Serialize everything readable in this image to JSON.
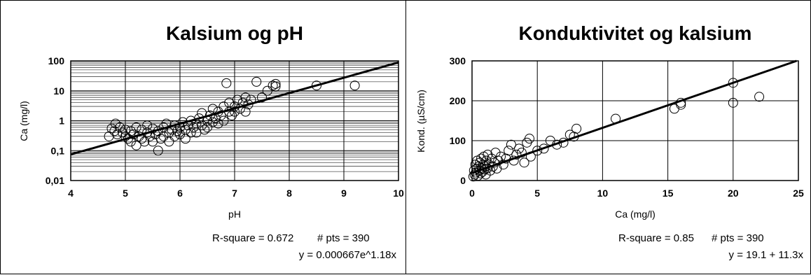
{
  "chart_data": [
    {
      "type": "scatter",
      "title": "Kalsium og pH",
      "xlabel": "pH",
      "ylabel": "Ca (mg/l)",
      "xlim": [
        4,
        10
      ],
      "ylim": [
        0.01,
        100
      ],
      "y_scale": "log",
      "grid": true,
      "x_ticks": [
        "4",
        "5",
        "6",
        "7",
        "8",
        "9",
        "10"
      ],
      "y_ticks": [
        "0,01",
        "0,1",
        "1",
        "10",
        "100"
      ],
      "trendline": {
        "type": "exponential",
        "a": 0.000667,
        "b": 1.18
      },
      "stats": {
        "r_square": "R-square = 0.672",
        "pts": "# pts = 390",
        "equation": "y = 0.000667e^1.18x"
      },
      "points": [
        [
          4.7,
          0.3
        ],
        [
          4.75,
          0.55
        ],
        [
          4.8,
          0.45
        ],
        [
          4.82,
          0.8
        ],
        [
          4.85,
          0.35
        ],
        [
          4.9,
          0.6
        ],
        [
          4.95,
          0.4
        ],
        [
          5.0,
          0.5
        ],
        [
          5.0,
          0.3
        ],
        [
          5.05,
          0.25
        ],
        [
          5.1,
          0.45
        ],
        [
          5.1,
          0.2
        ],
        [
          5.15,
          0.35
        ],
        [
          5.2,
          0.6
        ],
        [
          5.2,
          0.15
        ],
        [
          5.25,
          0.3
        ],
        [
          5.3,
          0.5
        ],
        [
          5.3,
          0.25
        ],
        [
          5.35,
          0.2
        ],
        [
          5.4,
          0.4
        ],
        [
          5.4,
          0.7
        ],
        [
          5.45,
          0.3
        ],
        [
          5.5,
          0.2
        ],
        [
          5.5,
          0.55
        ],
        [
          5.55,
          0.35
        ],
        [
          5.6,
          0.1
        ],
        [
          5.6,
          0.45
        ],
        [
          5.65,
          0.25
        ],
        [
          5.7,
          0.6
        ],
        [
          5.7,
          0.3
        ],
        [
          5.75,
          0.8
        ],
        [
          5.8,
          0.4
        ],
        [
          5.8,
          0.2
        ],
        [
          5.85,
          0.5
        ],
        [
          5.9,
          0.3
        ],
        [
          5.9,
          0.7
        ],
        [
          5.95,
          0.45
        ],
        [
          6.0,
          0.6
        ],
        [
          6.0,
          0.35
        ],
        [
          6.05,
          0.9
        ],
        [
          6.1,
          0.5
        ],
        [
          6.1,
          0.25
        ],
        [
          6.15,
          0.7
        ],
        [
          6.2,
          0.4
        ],
        [
          6.2,
          1.0
        ],
        [
          6.25,
          0.6
        ],
        [
          6.3,
          0.8
        ],
        [
          6.3,
          0.4
        ],
        [
          6.35,
          1.2
        ],
        [
          6.4,
          0.7
        ],
        [
          6.4,
          1.8
        ],
        [
          6.45,
          0.5
        ],
        [
          6.5,
          1.0
        ],
        [
          6.5,
          0.6
        ],
        [
          6.55,
          1.5
        ],
        [
          6.6,
          0.9
        ],
        [
          6.6,
          2.5
        ],
        [
          6.65,
          1.2
        ],
        [
          6.7,
          0.8
        ],
        [
          6.7,
          2.0
        ],
        [
          6.75,
          1.5
        ],
        [
          6.8,
          3.0
        ],
        [
          6.8,
          1.0
        ],
        [
          6.85,
          18
        ],
        [
          6.9,
          2.0
        ],
        [
          6.9,
          4.0
        ],
        [
          6.95,
          1.5
        ],
        [
          7.0,
          3.0
        ],
        [
          7.0,
          2.0
        ],
        [
          7.05,
          5.0
        ],
        [
          7.1,
          2.5
        ],
        [
          7.15,
          4.0
        ],
        [
          7.2,
          6.0
        ],
        [
          7.2,
          2.0
        ],
        [
          7.25,
          3.5
        ],
        [
          7.3,
          5.0
        ],
        [
          7.4,
          20
        ],
        [
          7.5,
          6.0
        ],
        [
          7.6,
          10
        ],
        [
          7.7,
          15
        ],
        [
          7.75,
          17
        ],
        [
          7.75,
          14
        ],
        [
          8.5,
          15
        ],
        [
          9.2,
          15
        ]
      ]
    },
    {
      "type": "scatter",
      "title": "Konduktivitet og kalsium",
      "xlabel": "Ca (mg/l)",
      "ylabel": "Kond. (µS/cm)",
      "xlim": [
        0,
        25
      ],
      "ylim": [
        0,
        300
      ],
      "grid": true,
      "x_ticks": [
        "0",
        "5",
        "10",
        "15",
        "20",
        "25"
      ],
      "y_ticks": [
        "0",
        "100",
        "200",
        "300"
      ],
      "trendline": {
        "type": "linear",
        "intercept": 19.1,
        "slope": 11.3
      },
      "stats": {
        "r_square": "R-square = 0.85",
        "pts": "# pts = 390",
        "equation": "y = 19.1 + 11.3x"
      },
      "points": [
        [
          0.1,
          10
        ],
        [
          0.15,
          25
        ],
        [
          0.2,
          15
        ],
        [
          0.25,
          40
        ],
        [
          0.3,
          20
        ],
        [
          0.35,
          30
        ],
        [
          0.4,
          50
        ],
        [
          0.45,
          12
        ],
        [
          0.5,
          35
        ],
        [
          0.55,
          25
        ],
        [
          0.6,
          45
        ],
        [
          0.65,
          18
        ],
        [
          0.7,
          55
        ],
        [
          0.75,
          30
        ],
        [
          0.8,
          22
        ],
        [
          0.85,
          40
        ],
        [
          0.9,
          60
        ],
        [
          0.95,
          28
        ],
        [
          1.0,
          35
        ],
        [
          1.05,
          15
        ],
        [
          1.1,
          50
        ],
        [
          1.15,
          30
        ],
        [
          1.2,
          65
        ],
        [
          1.3,
          40
        ],
        [
          1.4,
          25
        ],
        [
          1.5,
          55
        ],
        [
          1.6,
          35
        ],
        [
          1.7,
          45
        ],
        [
          1.8,
          70
        ],
        [
          1.9,
          30
        ],
        [
          2.0,
          50
        ],
        [
          2.2,
          60
        ],
        [
          2.4,
          40
        ],
        [
          2.6,
          55
        ],
        [
          2.8,
          75
        ],
        [
          3.0,
          90
        ],
        [
          3.2,
          50
        ],
        [
          3.4,
          65
        ],
        [
          3.6,
          80
        ],
        [
          3.8,
          70
        ],
        [
          4.0,
          45
        ],
        [
          4.2,
          95
        ],
        [
          4.4,
          105
        ],
        [
          4.5,
          60
        ],
        [
          5.0,
          75
        ],
        [
          5.5,
          80
        ],
        [
          6.0,
          100
        ],
        [
          6.5,
          90
        ],
        [
          7.0,
          95
        ],
        [
          7.5,
          115
        ],
        [
          7.8,
          110
        ],
        [
          8.0,
          130
        ],
        [
          11.0,
          155
        ],
        [
          15.5,
          180
        ],
        [
          16,
          190
        ],
        [
          16,
          195
        ],
        [
          20,
          245
        ],
        [
          20,
          195
        ],
        [
          22,
          210
        ]
      ]
    }
  ]
}
